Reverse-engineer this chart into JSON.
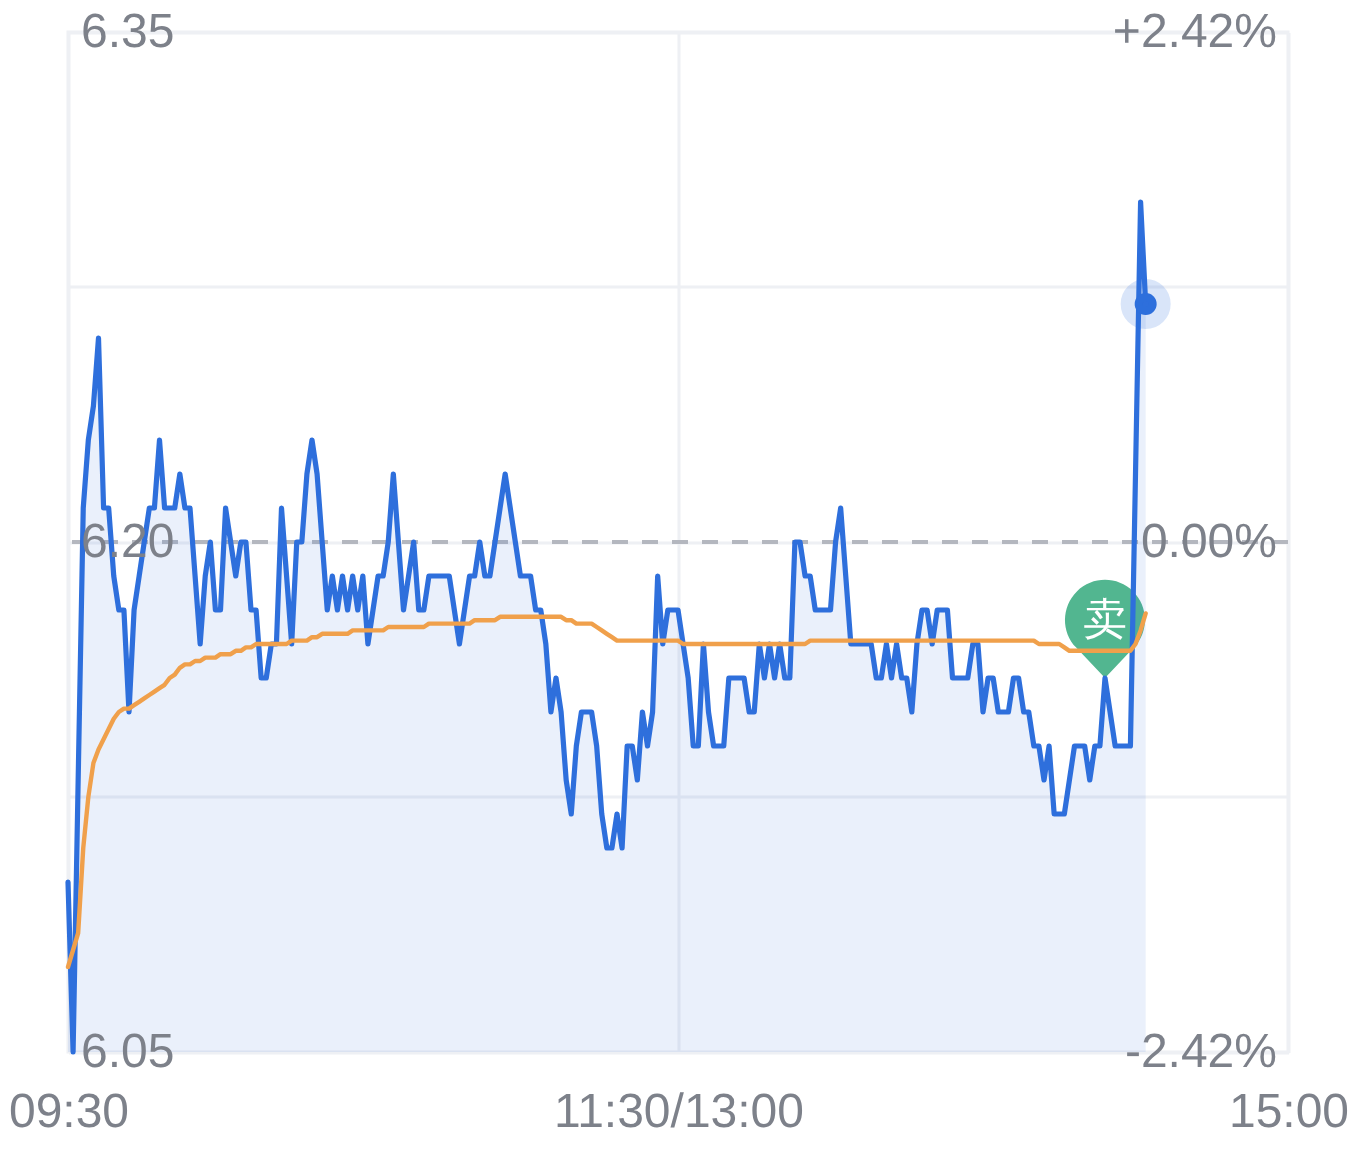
{
  "chart_data": {
    "type": "area",
    "categories": [
      "09:30",
      null,
      null,
      null,
      null,
      null,
      null,
      null,
      null,
      null,
      null,
      null,
      null,
      null,
      null,
      null,
      null,
      null,
      null,
      null,
      null,
      null,
      null,
      null,
      null,
      null,
      null,
      null,
      null,
      null,
      null,
      null,
      null,
      null,
      null,
      null,
      null,
      null,
      null,
      null,
      null,
      null,
      null,
      null,
      null,
      null,
      null,
      null,
      null,
      null,
      null,
      null,
      null,
      null,
      null,
      null,
      null,
      null,
      null,
      null,
      null,
      null,
      null,
      null,
      null,
      null,
      null,
      null,
      null,
      null,
      null,
      null,
      null,
      null,
      null,
      null,
      null,
      null,
      null,
      null,
      null,
      null,
      null,
      null,
      null,
      null,
      null,
      null,
      null,
      null,
      null,
      null,
      null,
      null,
      null,
      null,
      null,
      null,
      null,
      null,
      null,
      null,
      null,
      null,
      null,
      null,
      null,
      null,
      null,
      null,
      null,
      null,
      null,
      null,
      null,
      null,
      null,
      null,
      null,
      null,
      "11:30/13:00",
      null,
      null,
      null,
      null,
      null,
      null,
      null,
      null,
      null,
      null,
      null,
      null,
      null,
      null,
      null,
      null,
      null,
      null,
      null,
      null,
      null,
      null,
      null,
      null,
      null,
      null,
      null,
      null,
      null,
      null,
      null,
      null,
      null,
      null,
      null,
      null,
      null,
      null,
      null,
      null,
      null,
      null,
      null,
      null,
      null,
      null,
      null,
      null,
      null,
      null,
      null,
      null,
      null,
      null,
      null,
      null,
      null,
      null,
      null,
      null,
      null,
      null,
      null,
      null,
      null,
      null,
      null,
      null,
      null,
      null,
      null,
      null,
      null,
      null,
      null,
      null,
      null,
      null,
      null,
      null,
      null,
      null,
      null,
      null,
      null,
      null,
      null,
      null,
      null,
      null,
      null,
      null,
      null,
      null,
      null,
      null,
      null,
      null,
      null,
      null,
      null,
      null,
      null,
      null,
      null,
      null,
      null,
      null,
      null,
      null,
      null,
      null,
      null,
      null,
      null,
      null,
      null,
      null,
      null,
      "15:00"
    ],
    "ylim": [
      6.05,
      6.35
    ],
    "yticks": [
      6.05,
      {
        "value": 6.125,
        "label": null
      },
      {
        "value": 6.2,
        "label": "6.20"
      },
      {
        "value": 6.275,
        "label": null
      },
      6.35
    ],
    "y2lim": [
      -2.42,
      2.42
    ],
    "y2ticks": [
      {
        "value": -2.42,
        "label": "-2.42%"
      },
      {
        "value": 0,
        "label": "0.00%"
      },
      {
        "value": 2.42,
        "label": "+2.42%"
      }
    ],
    "grid": true,
    "series": [
      {
        "color": "#2e6fdc",
        "values": [
          6.1,
          6.05,
          6.13,
          6.21,
          6.23,
          6.24,
          6.26,
          6.21,
          6.21,
          6.19,
          6.18,
          6.18,
          6.15,
          6.18,
          6.19,
          6.2,
          6.21,
          6.21,
          6.23,
          6.21,
          6.21,
          6.21,
          6.22,
          6.21,
          6.21,
          6.19,
          6.17,
          6.19,
          6.2,
          6.18,
          6.18,
          6.21,
          6.2,
          6.19,
          6.2,
          6.2,
          6.18,
          6.18,
          6.16,
          6.16,
          6.17,
          6.17,
          6.21,
          6.19,
          6.17,
          6.2,
          6.2,
          6.22,
          6.23,
          6.22,
          6.2,
          6.18,
          6.19,
          6.18,
          6.19,
          6.18,
          6.19,
          6.18,
          6.19,
          6.17,
          6.18,
          6.19,
          6.19,
          6.2,
          6.22,
          6.2,
          6.18,
          6.19,
          6.2,
          6.18,
          6.18,
          6.19,
          6.19,
          6.19,
          6.19,
          6.19,
          6.18,
          6.17,
          6.18,
          6.19,
          6.19,
          6.2,
          6.19,
          6.19,
          6.2,
          6.21,
          6.22,
          6.21,
          6.2,
          6.19,
          6.19,
          6.19,
          6.18,
          6.18,
          6.17,
          6.15,
          6.16,
          6.15,
          6.13,
          6.12,
          6.14,
          6.15,
          6.15,
          6.15,
          6.14,
          6.12,
          6.11,
          6.11,
          6.12,
          6.11,
          6.14,
          6.14,
          6.13,
          6.15,
          6.14,
          6.15,
          6.19,
          6.17,
          6.18,
          6.18,
          6.18,
          6.17,
          6.16,
          6.14,
          6.14,
          6.17,
          6.15,
          6.14,
          6.14,
          6.14,
          6.16,
          6.16,
          6.16,
          6.16,
          6.15,
          6.15,
          6.17,
          6.16,
          6.17,
          6.16,
          6.17,
          6.16,
          6.16,
          6.2,
          6.2,
          6.19,
          6.19,
          6.18,
          6.18,
          6.18,
          6.18,
          6.2,
          6.21,
          6.19,
          6.17,
          6.17,
          6.17,
          6.17,
          6.17,
          6.16,
          6.16,
          6.17,
          6.16,
          6.17,
          6.16,
          6.16,
          6.15,
          6.17,
          6.18,
          6.18,
          6.17,
          6.18,
          6.18,
          6.18,
          6.16,
          6.16,
          6.16,
          6.16,
          6.17,
          6.17,
          6.15,
          6.16,
          6.16,
          6.15,
          6.15,
          6.15,
          6.16,
          6.16,
          6.15,
          6.15,
          6.14,
          6.14,
          6.13,
          6.14,
          6.12,
          6.12,
          6.12,
          6.13,
          6.14,
          6.14,
          6.14,
          6.13,
          6.14,
          6.14,
          6.16,
          6.15,
          6.14,
          6.14,
          6.14,
          6.14,
          6.22,
          6.3,
          6.27,
          null,
          null,
          null,
          null,
          null,
          null,
          null,
          null,
          null,
          null,
          null,
          null,
          null,
          null,
          null,
          null,
          null,
          null,
          null,
          null,
          null,
          null,
          null,
          null,
          null,
          null,
          null,
          null
        ]
      },
      {
        "type": "line",
        "color": "#f0a04b",
        "values": [
          6.075,
          6.08,
          6.085,
          6.11,
          6.125,
          6.135,
          6.139,
          6.142,
          6.145,
          6.148,
          6.15,
          6.151,
          6.151,
          6.152,
          6.153,
          6.154,
          6.155,
          6.156,
          6.157,
          6.158,
          6.16,
          6.161,
          6.163,
          6.164,
          6.164,
          6.165,
          6.165,
          6.166,
          6.166,
          6.166,
          6.167,
          6.167,
          6.167,
          6.168,
          6.168,
          6.169,
          6.169,
          6.17,
          6.17,
          6.17,
          6.17,
          6.17,
          6.17,
          6.17,
          6.171,
          6.171,
          6.171,
          6.171,
          6.172,
          6.172,
          6.173,
          6.173,
          6.173,
          6.173,
          6.173,
          6.173,
          6.174,
          6.174,
          6.174,
          6.174,
          6.174,
          6.174,
          6.174,
          6.175,
          6.175,
          6.175,
          6.175,
          6.175,
          6.175,
          6.175,
          6.175,
          6.176,
          6.176,
          6.176,
          6.176,
          6.176,
          6.176,
          6.176,
          6.176,
          6.176,
          6.177,
          6.177,
          6.177,
          6.177,
          6.177,
          6.178,
          6.178,
          6.178,
          6.178,
          6.178,
          6.178,
          6.178,
          6.178,
          6.178,
          6.178,
          6.178,
          6.178,
          6.178,
          6.177,
          6.177,
          6.176,
          6.176,
          6.176,
          6.176,
          6.175,
          6.174,
          6.173,
          6.172,
          6.171,
          6.171,
          6.171,
          6.171,
          6.171,
          6.171,
          6.171,
          6.171,
          6.171,
          6.171,
          6.171,
          6.171,
          6.171,
          6.17,
          6.17,
          6.17,
          6.17,
          6.17,
          6.17,
          6.17,
          6.17,
          6.17,
          6.17,
          6.17,
          6.17,
          6.17,
          6.17,
          6.17,
          6.17,
          6.17,
          6.17,
          6.17,
          6.17,
          6.17,
          6.17,
          6.17,
          6.17,
          6.17,
          6.171,
          6.171,
          6.171,
          6.171,
          6.171,
          6.171,
          6.171,
          6.171,
          6.171,
          6.171,
          6.171,
          6.171,
          6.171,
          6.171,
          6.171,
          6.171,
          6.171,
          6.171,
          6.171,
          6.171,
          6.171,
          6.171,
          6.171,
          6.171,
          6.171,
          6.171,
          6.171,
          6.171,
          6.171,
          6.171,
          6.171,
          6.171,
          6.171,
          6.171,
          6.171,
          6.171,
          6.171,
          6.171,
          6.171,
          6.171,
          6.171,
          6.171,
          6.171,
          6.171,
          6.171,
          6.17,
          6.17,
          6.17,
          6.17,
          6.17,
          6.169,
          6.168,
          6.168,
          6.168,
          6.168,
          6.168,
          6.168,
          6.168,
          6.168,
          6.168,
          6.168,
          6.168,
          6.168,
          6.168,
          6.17,
          6.174,
          6.179,
          null,
          null,
          null,
          null,
          null,
          null,
          null,
          null,
          null,
          null,
          null,
          null,
          null,
          null,
          null,
          null,
          null,
          null,
          null,
          null,
          null,
          null,
          null,
          null,
          null,
          null,
          null,
          null
        ]
      },
      {
        "type": "scatter",
        "marker": "circle",
        "color": "#2e6fdc",
        "values": [
          null,
          null,
          null,
          null,
          null,
          null,
          null,
          null,
          null,
          null,
          null,
          null,
          null,
          null,
          null,
          null,
          null,
          null,
          null,
          null,
          null,
          null,
          null,
          null,
          null,
          null,
          null,
          null,
          null,
          null,
          null,
          null,
          null,
          null,
          null,
          null,
          null,
          null,
          null,
          null,
          null,
          null,
          null,
          null,
          null,
          null,
          null,
          null,
          null,
          null,
          null,
          null,
          null,
          null,
          null,
          null,
          null,
          null,
          null,
          null,
          null,
          null,
          null,
          null,
          null,
          null,
          null,
          null,
          null,
          null,
          null,
          null,
          null,
          null,
          null,
          null,
          null,
          null,
          null,
          null,
          null,
          null,
          null,
          null,
          null,
          null,
          null,
          null,
          null,
          null,
          null,
          null,
          null,
          null,
          null,
          null,
          null,
          null,
          null,
          null,
          null,
          null,
          null,
          null,
          null,
          null,
          null,
          null,
          null,
          null,
          null,
          null,
          null,
          null,
          null,
          null,
          null,
          null,
          null,
          null,
          null,
          null,
          null,
          null,
          null,
          null,
          null,
          null,
          null,
          null,
          null,
          null,
          null,
          null,
          null,
          null,
          null,
          null,
          null,
          null,
          null,
          null,
          null,
          null,
          null,
          null,
          null,
          null,
          null,
          null,
          null,
          null,
          null,
          null,
          null,
          null,
          null,
          null,
          null,
          null,
          null,
          null,
          null,
          null,
          null,
          null,
          null,
          null,
          null,
          null,
          null,
          null,
          null,
          null,
          null,
          null,
          null,
          null,
          null,
          null,
          null,
          null,
          null,
          null,
          null,
          null,
          null,
          null,
          null,
          null,
          null,
          null,
          null,
          null,
          null,
          null,
          null,
          null,
          null,
          null,
          null,
          null,
          null,
          null,
          null,
          null,
          null,
          null,
          null,
          null,
          null,
          null,
          6.27,
          null,
          null,
          null,
          null,
          null,
          null,
          null,
          null,
          null,
          null,
          null,
          null,
          null,
          null,
          null,
          null,
          null,
          null,
          null,
          null,
          null,
          null,
          null,
          null,
          null,
          null,
          null,
          null
        ]
      }
    ],
    "ref_lines": [
      {
        "axis": "y2",
        "value": 0,
        "color": "#b4b7bf",
        "line_style": "dashed"
      }
    ],
    "annotations": [
      {
        "text": "卖",
        "y": 6.16
      }
    ]
  }
}
